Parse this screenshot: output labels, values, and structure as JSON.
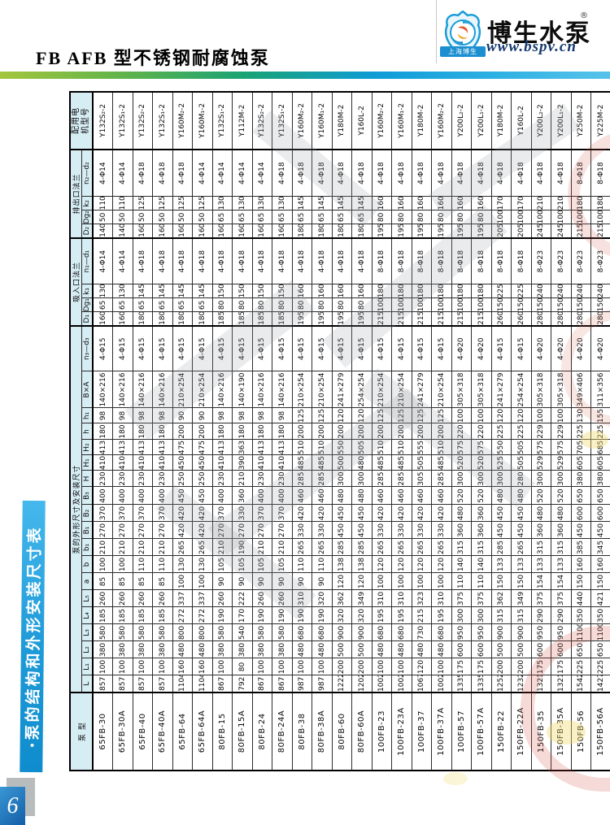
{
  "page": {
    "header_title": "FB AFB 型不锈钢耐腐蚀泵",
    "page_number": "6"
  },
  "logo": {
    "brand": "博生水泵",
    "reg_mark": "®",
    "url": "www.bspv.cn",
    "banner": "上海博生"
  },
  "sidebar": {
    "title": "·泵的结构和外形安装尺寸表"
  },
  "table": {
    "col_model": "泵 型",
    "group_dims": "泵的外形尺寸及安装尺寸",
    "group_suction": "吸入口法兰",
    "group_discharge": "排出口法兰",
    "col_motor": "配用电机型号",
    "dim_labels": [
      "L",
      "L₁",
      "L₂",
      "L₃",
      "L₄",
      "L₅",
      "a",
      "b",
      "b₁",
      "B₁",
      "B₂",
      "B₃",
      "H",
      "H₁",
      "H₂",
      "h",
      "h₁",
      "B×A",
      "n₃—d₃"
    ],
    "suction_labels": [
      "D₁",
      "Dg₁",
      "k₁",
      "n₁—d₁"
    ],
    "discharge_labels": [
      "D₂",
      "Dg₂",
      "k₂",
      "n₂—d₂"
    ],
    "rows": [
      {
        "model": "65FB-30",
        "dims": [
          "857",
          "100",
          "380",
          "580",
          "185",
          "260",
          "85",
          "100",
          "210",
          "270",
          "370",
          "400",
          "230",
          "410",
          "413",
          "180",
          "98",
          "140×216",
          "4-Φ15"
        ],
        "suction": [
          "160",
          "65",
          "130",
          "4-Φ14"
        ],
        "discharge": [
          "140",
          "50",
          "110",
          "4-Φ14"
        ],
        "motor": "Y132S₂-2"
      },
      {
        "model": "65FB-30A",
        "dims": [
          "857",
          "100",
          "380",
          "580",
          "185",
          "260",
          "85",
          "100",
          "210",
          "270",
          "370",
          "400",
          "230",
          "410",
          "413",
          "180",
          "98",
          "140×216",
          "4-Φ15"
        ],
        "suction": [
          "160",
          "65",
          "130",
          "4-Φ14"
        ],
        "discharge": [
          "140",
          "50",
          "110",
          "4-Φ14"
        ],
        "motor": "Y132S₁-2"
      },
      {
        "model": "65FB-40",
        "dims": [
          "857",
          "100",
          "380",
          "580",
          "185",
          "260",
          "85",
          "110",
          "210",
          "270",
          "370",
          "400",
          "230",
          "410",
          "413",
          "180",
          "98",
          "140×216",
          "4-Φ15"
        ],
        "suction": [
          "180",
          "65",
          "145",
          "4-Φ18"
        ],
        "discharge": [
          "160",
          "50",
          "125",
          "4-Φ18"
        ],
        "motor": "Y132S₂-2"
      },
      {
        "model": "65FB-40A",
        "dims": [
          "857",
          "100",
          "380",
          "580",
          "185",
          "260",
          "85",
          "110",
          "210",
          "270",
          "370",
          "400",
          "230",
          "410",
          "413",
          "180",
          "98",
          "140×216",
          "4-Φ15"
        ],
        "suction": [
          "180",
          "65",
          "145",
          "4-Φ18"
        ],
        "discharge": [
          "160",
          "50",
          "125",
          "4-Φ18"
        ],
        "motor": "Y132S₁-2"
      },
      {
        "model": "65FB-64",
        "dims": [
          "1104",
          "160",
          "480",
          "800",
          "272",
          "337",
          "100",
          "130",
          "265",
          "420",
          "420",
          "450",
          "250",
          "450",
          "475",
          "200",
          "90",
          "210×254",
          "4-Φ15"
        ],
        "suction": [
          "180",
          "65",
          "145",
          "4-Φ18"
        ],
        "discharge": [
          "160",
          "50",
          "125",
          "4-Φ18"
        ],
        "motor": "Y160M₂-2"
      },
      {
        "model": "65FB-64A",
        "dims": [
          "1104",
          "160",
          "480",
          "800",
          "272",
          "337",
          "100",
          "130",
          "265",
          "420",
          "420",
          "450",
          "250",
          "450",
          "475",
          "200",
          "90",
          "210×254",
          "4-Φ15"
        ],
        "suction": [
          "180",
          "65",
          "145",
          "4-Φ18"
        ],
        "discharge": [
          "160",
          "50",
          "125",
          "4-Φ14"
        ],
        "motor": "Y160M₁-2"
      },
      {
        "model": "80FB-15",
        "dims": [
          "867",
          "100",
          "380",
          "580",
          "190",
          "260",
          "90",
          "105",
          "210",
          "270",
          "370",
          "400",
          "230",
          "410",
          "413",
          "180",
          "98",
          "140×216",
          "4-Φ15"
        ],
        "suction": [
          "185",
          "80",
          "150",
          "4-Φ18"
        ],
        "discharge": [
          "160",
          "65",
          "130",
          "4-Φ14"
        ],
        "motor": "Y132S₁-2"
      },
      {
        "model": "80FB-15A",
        "dims": [
          "792",
          "80",
          "380",
          "540",
          "170",
          "222",
          "90",
          "105",
          "190",
          "270",
          "330",
          "360",
          "210",
          "390",
          "363",
          "180",
          "98",
          "140×190",
          "4-Φ15"
        ],
        "suction": [
          "185",
          "80",
          "150",
          "4-Φ18"
        ],
        "discharge": [
          "160",
          "65",
          "130",
          "4-Φ14"
        ],
        "motor": "Y112M-2"
      },
      {
        "model": "80FB-24",
        "dims": [
          "867",
          "100",
          "380",
          "580",
          "190",
          "260",
          "90",
          "105",
          "210",
          "270",
          "370",
          "400",
          "230",
          "410",
          "413",
          "180",
          "98",
          "140×216",
          "4-Φ15"
        ],
        "suction": [
          "185",
          "80",
          "150",
          "4-Φ18"
        ],
        "discharge": [
          "160",
          "65",
          "130",
          "4-Φ14"
        ],
        "motor": "Y132S₂-2"
      },
      {
        "model": "80FB-24A",
        "dims": [
          "867",
          "100",
          "380",
          "580",
          "190",
          "260",
          "90",
          "105",
          "210",
          "270",
          "370",
          "400",
          "230",
          "410",
          "413",
          "180",
          "98",
          "140×216",
          "4-Φ15"
        ],
        "suction": [
          "185",
          "80",
          "150",
          "4-Φ18"
        ],
        "discharge": [
          "160",
          "65",
          "130",
          "4-Φ18"
        ],
        "motor": "Y132S₁-2"
      },
      {
        "model": "80FB-38",
        "dims": [
          "987",
          "100",
          "480",
          "680",
          "190",
          "310",
          "90",
          "110",
          "265",
          "330",
          "420",
          "460",
          "285",
          "485",
          "510",
          "200",
          "125",
          "210×254",
          "4-Φ15"
        ],
        "suction": [
          "195",
          "80",
          "160",
          "4-Φ18"
        ],
        "discharge": [
          "180",
          "65",
          "145",
          "4-Φ18"
        ],
        "motor": "Y160M₂-2"
      },
      {
        "model": "80FB-38A",
        "dims": [
          "987",
          "100",
          "480",
          "680",
          "190",
          "320",
          "90",
          "110",
          "265",
          "330",
          "420",
          "460",
          "285",
          "485",
          "510",
          "200",
          "125",
          "210×254",
          "4-Φ15"
        ],
        "suction": [
          "195",
          "80",
          "160",
          "4-Φ18"
        ],
        "discharge": [
          "180",
          "65",
          "145",
          "4-Φ18"
        ],
        "motor": "Y160M₁-2"
      },
      {
        "model": "80FB-60",
        "dims": [
          "1222",
          "200",
          "500",
          "900",
          "320",
          "362",
          "120",
          "138",
          "285",
          "450",
          "450",
          "480",
          "300",
          "500",
          "550",
          "200",
          "120",
          "241×279",
          "4-Φ15"
        ],
        "suction": [
          "195",
          "80",
          "160",
          "4-Φ18"
        ],
        "discharge": [
          "180",
          "65",
          "145",
          "4-Φ18"
        ],
        "motor": "Y180M-2"
      },
      {
        "model": "80FB-60A",
        "dims": [
          "1202",
          "200",
          "500",
          "900",
          "320",
          "349",
          "120",
          "138",
          "285",
          "450",
          "450",
          "480",
          "300",
          "480",
          "505",
          "200",
          "120",
          "254×254",
          "4-Φ15"
        ],
        "suction": [
          "195",
          "80",
          "160",
          "4-Φ18"
        ],
        "discharge": [
          "180",
          "65",
          "145",
          "4-Φ18"
        ],
        "motor": "Y160L-2"
      },
      {
        "model": "100FB-23",
        "dims": [
          "1002",
          "100",
          "480",
          "680",
          "195",
          "310",
          "100",
          "120",
          "265",
          "330",
          "420",
          "460",
          "285",
          "485",
          "510",
          "200",
          "125",
          "210×254",
          "4-Φ15"
        ],
        "suction": [
          "215",
          "100",
          "180",
          "8-Φ18"
        ],
        "discharge": [
          "195",
          "80",
          "160",
          "4-Φ18"
        ],
        "motor": "Y160M₂-2"
      },
      {
        "model": "100FB-23A",
        "dims": [
          "1002",
          "100",
          "480",
          "680",
          "195",
          "310",
          "100",
          "120",
          "265",
          "330",
          "420",
          "460",
          "285",
          "485",
          "510",
          "200",
          "125",
          "210×254",
          "4-Φ15"
        ],
        "suction": [
          "215",
          "100",
          "180",
          "8-Φ18"
        ],
        "discharge": [
          "195",
          "80",
          "160",
          "4-Φ18"
        ],
        "motor": "Y160M₁-2"
      },
      {
        "model": "100FB-37",
        "dims": [
          "1067",
          "120",
          "480",
          "730",
          "215",
          "323",
          "100",
          "120",
          "265",
          "330",
          "420",
          "460",
          "305",
          "505",
          "555",
          "200",
          "125",
          "241×279",
          "4-Φ15"
        ],
        "suction": [
          "215",
          "100",
          "180",
          "8-Φ18"
        ],
        "discharge": [
          "195",
          "80",
          "160",
          "4-Φ18"
        ],
        "motor": "Y180M-2"
      },
      {
        "model": "100FB-37A",
        "dims": [
          "1002",
          "100",
          "480",
          "680",
          "195",
          "310",
          "100",
          "120",
          "265",
          "330",
          "420",
          "460",
          "285",
          "485",
          "510",
          "200",
          "125",
          "210×254",
          "4-Φ15"
        ],
        "suction": [
          "215",
          "100",
          "180",
          "8-Φ18"
        ],
        "discharge": [
          "195",
          "80",
          "160",
          "4-Φ18"
        ],
        "motor": "Y160M₂-2"
      },
      {
        "model": "100FB-57",
        "dims": [
          "1335",
          "175",
          "600",
          "950",
          "300",
          "375",
          "110",
          "140",
          "315",
          "360",
          "480",
          "520",
          "300",
          "520",
          "575",
          "220",
          "100",
          "305×318",
          "4-Φ20"
        ],
        "suction": [
          "215",
          "100",
          "180",
          "8-Φ18"
        ],
        "discharge": [
          "195",
          "80",
          "160",
          "4-Φ18"
        ],
        "motor": "Y200L₂-2"
      },
      {
        "model": "100FB-57A",
        "dims": [
          "1335",
          "175",
          "600",
          "950",
          "300",
          "375",
          "110",
          "140",
          "315",
          "360",
          "360",
          "520",
          "300",
          "520",
          "575",
          "220",
          "100",
          "305×318",
          "4-Φ20"
        ],
        "suction": [
          "215",
          "100",
          "180",
          "8-Φ18"
        ],
        "discharge": [
          "195",
          "80",
          "160",
          "4-Φ18"
        ],
        "motor": "Y200L₁-2"
      },
      {
        "model": "150FB-22",
        "dims": [
          "1252",
          "200",
          "500",
          "900",
          "315",
          "362",
          "150",
          "133",
          "285",
          "450",
          "450",
          "480",
          "300",
          "525",
          "550",
          "225",
          "120",
          "241×279",
          "4-Φ15"
        ],
        "suction": [
          "260",
          "150",
          "225",
          "8-Φ18"
        ],
        "discharge": [
          "205",
          "100",
          "170",
          "4-Φ18"
        ],
        "motor": "Y180M-2"
      },
      {
        "model": "150FB-22A",
        "dims": [
          "1232",
          "200",
          "500",
          "900",
          "315",
          "349",
          "150",
          "133",
          "265",
          "450",
          "450",
          "480",
          "280",
          "505",
          "505",
          "225",
          "120",
          "254×254",
          "4-Φ15"
        ],
        "suction": [
          "260",
          "150",
          "225",
          "8-Φ18"
        ],
        "discharge": [
          "205",
          "100",
          "170",
          "4-Φ18"
        ],
        "motor": "Y160L-2"
      },
      {
        "model": "150FB-35",
        "dims": [
          "1321",
          "175",
          "600",
          "950",
          "290",
          "375",
          "154",
          "133",
          "315",
          "360",
          "480",
          "520",
          "300",
          "529",
          "575",
          "229",
          "100",
          "305×318",
          "4-Φ20"
        ],
        "suction": [
          "280",
          "150",
          "240",
          "8-Φ23"
        ],
        "discharge": [
          "245",
          "100",
          "210",
          "4-Φ18"
        ],
        "motor": "Y200L₂-2"
      },
      {
        "model": "150FB-35A",
        "dims": [
          "1321",
          "175",
          "600",
          "950",
          "290",
          "375",
          "154",
          "133",
          "315",
          "360",
          "480",
          "520",
          "300",
          "529",
          "575",
          "229",
          "100",
          "305×318",
          "4-Φ20"
        ],
        "suction": [
          "280",
          "150",
          "240",
          "8-Φ23"
        ],
        "discharge": [
          "245",
          "100",
          "210",
          "4-Φ18"
        ],
        "motor": "Y200L₁-2"
      },
      {
        "model": "150FB-56",
        "dims": [
          "1542",
          "225",
          "650",
          "1100",
          "350",
          "440",
          "150",
          "160",
          "385",
          "450",
          "600",
          "650",
          "380",
          "605",
          "705",
          "225",
          "130",
          "349×406",
          "4-Φ20"
        ],
        "suction": [
          "280",
          "150",
          "240",
          "8-Φ23"
        ],
        "discharge": [
          "215",
          "100",
          "180",
          "8-Φ18"
        ],
        "motor": "Y250M-2"
      },
      {
        "model": "150FB-56A",
        "dims": [
          "1427",
          "225",
          "650",
          "1100",
          "350",
          "421",
          "150",
          "160",
          "345",
          "450",
          "600",
          "650",
          "380",
          "605",
          "685",
          "225",
          "155",
          "311×356",
          "4-Φ20"
        ],
        "suction": [
          "280",
          "150",
          "240",
          "8-Φ23"
        ],
        "discharge": [
          "215",
          "100",
          "180",
          "8-Φ18"
        ],
        "motor": "Y225M-2"
      }
    ]
  }
}
